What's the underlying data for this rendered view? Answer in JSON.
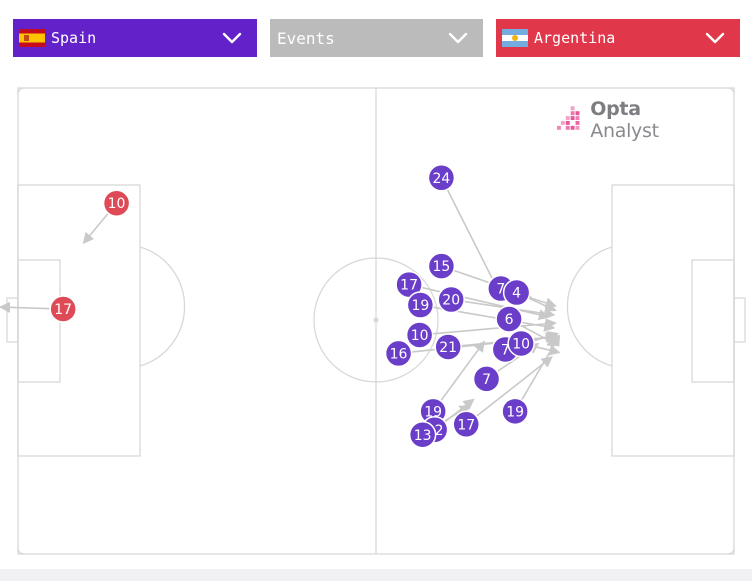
{
  "filters": {
    "home_team": {
      "label": "Spain",
      "color": "#6322c9",
      "flag_icon": "spain-flag-icon"
    },
    "event_type": {
      "label": "Events",
      "color": "#bbbbbb"
    },
    "away_team": {
      "label": "Argentina",
      "color": "#e0384a",
      "flag_icon": "argentina-flag-icon"
    }
  },
  "brand": {
    "logo_strong": "Opta",
    "logo_light": " Analyst"
  },
  "colors": {
    "away_marker": "#6a3ec9",
    "home_marker": "#de4a56",
    "pitch_lines": "#d8d8d8",
    "arrow": "#c9c9c9"
  },
  "pitch_events": {
    "home": [
      {
        "num": "10",
        "x": 15.5,
        "y": 26.7,
        "ex": 11.1,
        "ey": 34.7
      },
      {
        "num": "17",
        "x": 8.4,
        "y": 47.9,
        "ex": 0.0,
        "ey": 47.5
      }
    ],
    "away": [
      {
        "num": "24",
        "x": 58.7,
        "y": 21.6,
        "ex": 66.4,
        "ey": 44.6
      },
      {
        "num": "15",
        "x": 58.7,
        "y": 39.3,
        "ex": 70.6,
        "ey": 45.5
      },
      {
        "num": "17",
        "x": 54.4,
        "y": 43.0,
        "ex": 73.0,
        "ey": 49.5
      },
      {
        "num": "19",
        "x": 55.9,
        "y": 47.1,
        "ex": 73.7,
        "ey": 51.7
      },
      {
        "num": "20",
        "x": 60.0,
        "y": 46.0,
        "ex": 73.7,
        "ey": 49.1
      },
      {
        "num": "10",
        "x": 55.8,
        "y": 53.1,
        "ex": 73.9,
        "ey": 50.7
      },
      {
        "num": "16",
        "x": 53.0,
        "y": 56.8,
        "ex": 73.9,
        "ey": 53.4
      },
      {
        "num": "21",
        "x": 59.6,
        "y": 55.5,
        "ex": 74.4,
        "ey": 53.4
      },
      {
        "num": "7",
        "x": 66.6,
        "y": 43.8,
        "ex": 73.9,
        "ey": 47.3
      },
      {
        "num": "4",
        "x": 68.7,
        "y": 44.6,
        "ex": 73.9,
        "ey": 48.2
      },
      {
        "num": "6",
        "x": 67.7,
        "y": 49.9,
        "ex": 74.2,
        "ey": 55.2
      },
      {
        "num": "7",
        "x": 67.2,
        "y": 56.0,
        "ex": 74.2,
        "ey": 52.8
      },
      {
        "num": "10",
        "x": 69.3,
        "y": 54.8,
        "ex": 74.4,
        "ey": 56.6
      },
      {
        "num": "7",
        "x": 64.7,
        "y": 61.9,
        "ex": 71.6,
        "ey": 54.8
      },
      {
        "num": "19",
        "x": 57.6,
        "y": 68.4,
        "ex": 64.4,
        "ey": 54.4
      },
      {
        "num": "22",
        "x": 57.8,
        "y": 72.1,
        "ex": 63.0,
        "ey": 66.0
      },
      {
        "num": "13",
        "x": 56.2,
        "y": 73.1,
        "ex": 62.5,
        "ey": 67.2
      },
      {
        "num": "17",
        "x": 62.0,
        "y": 71.0,
        "ex": 73.4,
        "ey": 57.5
      },
      {
        "num": "19",
        "x": 68.5,
        "y": 68.4,
        "ex": 74.4,
        "ey": 53.2
      }
    ]
  }
}
